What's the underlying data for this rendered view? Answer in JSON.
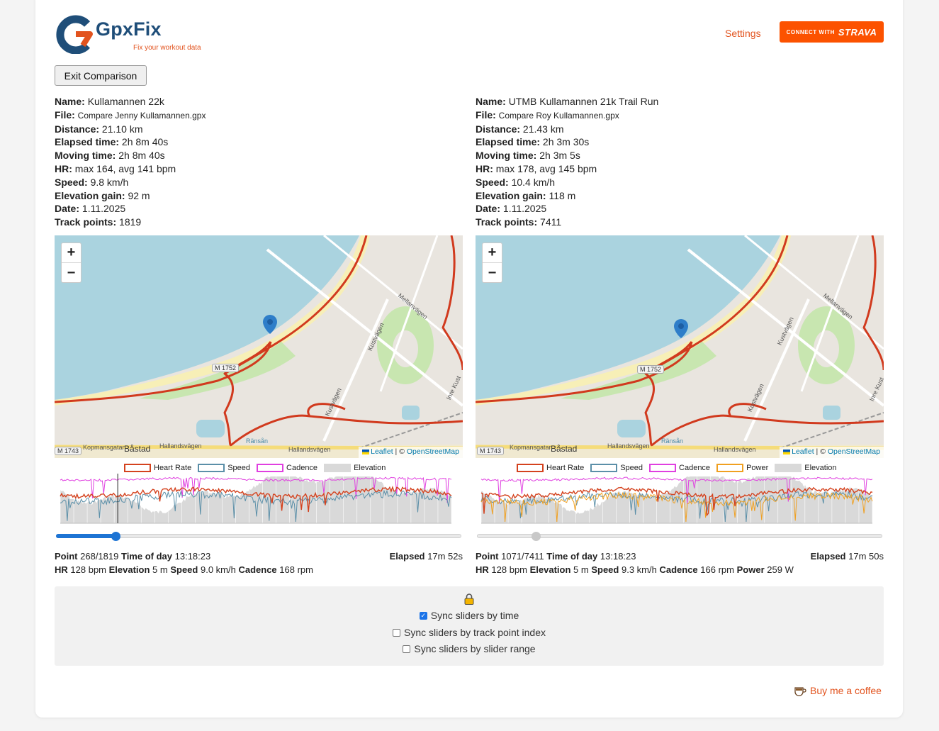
{
  "header": {
    "logo_text": "GpxFix",
    "logo_tagline": "Fix your workout data",
    "settings_label": "Settings",
    "strava_small": "CONNECT WITH",
    "strava_brand": "STRAVA",
    "exit_label": "Exit Comparison"
  },
  "left": {
    "name": "Kullamannen 22k",
    "file": "Compare Jenny Kullamannen.gpx",
    "distance": "21.10 km",
    "elapsed": "2h 8m 40s",
    "moving": "2h 8m 40s",
    "hr": "max 164, avg 141 bpm",
    "speed": "9.8 km/h",
    "elevation_gain": "92 m",
    "date": "1.11.2025",
    "track_points": "1819",
    "legend": [
      "Heart Rate",
      "Speed",
      "Cadence",
      "Elevation"
    ],
    "readout": {
      "point": "268/1819",
      "time_of_day": "13:18:23",
      "elapsed": "17m 52s",
      "hr": "128 bpm",
      "elevation": "5 m",
      "speed": "9.0 km/h",
      "cadence": "168 rpm"
    },
    "slider_fraction": 0.147
  },
  "right": {
    "name": "UTMB Kullamannen 21k Trail Run",
    "file": "Compare Roy Kullamannen.gpx",
    "distance": "21.43 km",
    "elapsed": "2h 3m 30s",
    "moving": "2h 3m 5s",
    "hr": "max 178, avg 145 bpm",
    "speed": "10.4 km/h",
    "elevation_gain": "118 m",
    "date": "1.11.2025",
    "track_points": "7411",
    "legend": [
      "Heart Rate",
      "Speed",
      "Cadence",
      "Power",
      "Elevation"
    ],
    "readout": {
      "point": "1071/7411",
      "time_of_day": "13:18:23",
      "elapsed": "17m 50s",
      "hr": "128 bpm",
      "elevation": "5 m",
      "speed": "9.3 km/h",
      "cadence": "166 rpm",
      "power": "259 W"
    },
    "slider_fraction": 0.145
  },
  "labels": {
    "name": "Name:",
    "file": "File:",
    "distance": "Distance:",
    "elapsed": "Elapsed time:",
    "moving": "Moving time:",
    "hr": "HR:",
    "speed": "Speed:",
    "elevation_gain": "Elevation gain:",
    "date": "Date:",
    "track_points": "Track points:",
    "point": "Point",
    "time_of_day": "Time of day",
    "elapsed_short": "Elapsed",
    "hr_short": "HR",
    "elevation_short": "Elevation",
    "speed_short": "Speed",
    "cadence_short": "Cadence",
    "power_short": "Power"
  },
  "map": {
    "zoom_in": "+",
    "zoom_out": "−",
    "attrib_leaflet": "Leaflet",
    "attrib_sep": " | © ",
    "attrib_osm": "OpenStreetMap",
    "road_label": "M 1752",
    "road_label_2": "M 1743",
    "town": "Båstad",
    "streets": [
      "Kopmansgatan",
      "Hallandsvägen",
      "Hallandsvägen",
      "Kustvägen",
      "Mellanvägen",
      "Kustvägen",
      "Inre Kust",
      "Ränsån"
    ]
  },
  "sync": {
    "by_time": "Sync sliders by time",
    "by_index": "Sync sliders by track point index",
    "by_range": "Sync sliders by slider range",
    "by_time_checked": true,
    "by_index_checked": false,
    "by_range_checked": false
  },
  "footer": {
    "coffee_label": "Buy me a coffee"
  },
  "colors": {
    "heart_rate": "#d4421e",
    "speed": "#5b8fa8",
    "cadence": "#e040e0",
    "power": "#f0a020",
    "elevation": "#d9d9d9",
    "accent": "#e2531e",
    "strava": "#fc5200",
    "route": "#d13a1e",
    "water": "#aad3df"
  }
}
